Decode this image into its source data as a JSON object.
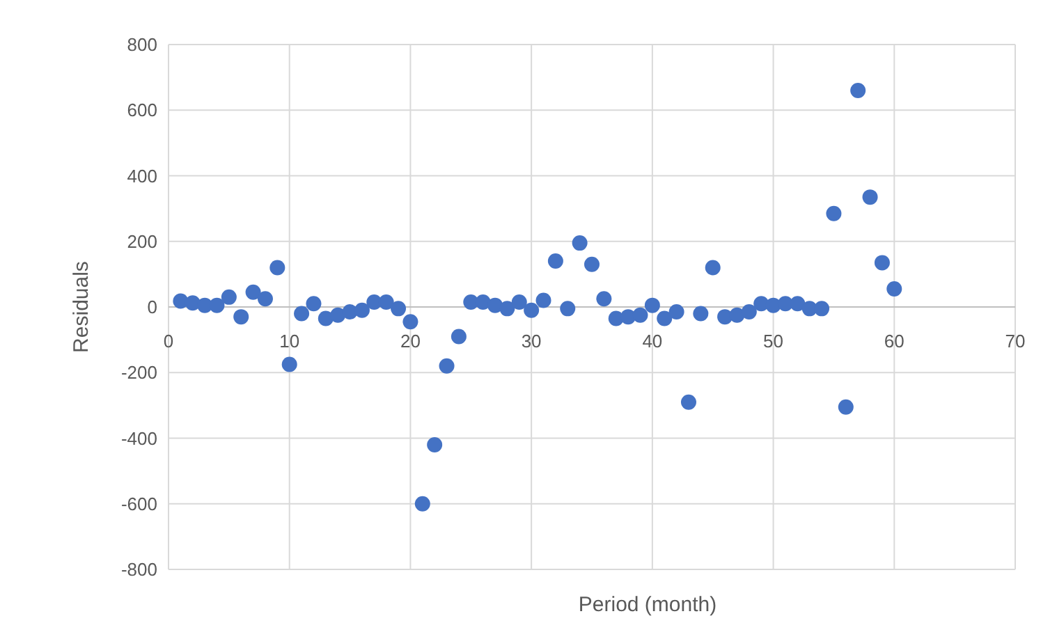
{
  "chart_data": {
    "type": "scatter",
    "xlabel": "Period (month)",
    "ylabel": "Residuals",
    "x": [
      1,
      2,
      3,
      4,
      5,
      6,
      7,
      8,
      9,
      10,
      11,
      12,
      13,
      14,
      15,
      16,
      17,
      18,
      19,
      20,
      21,
      22,
      23,
      24,
      25,
      26,
      27,
      28,
      29,
      30,
      31,
      32,
      33,
      34,
      35,
      36,
      37,
      38,
      39,
      40,
      41,
      42,
      43,
      44,
      45,
      46,
      47,
      48,
      49,
      50,
      51,
      52,
      53,
      54,
      55,
      56,
      57,
      58,
      59,
      60
    ],
    "series": [
      {
        "color": "#4472c4",
        "values": [
          18,
          12,
          5,
          5,
          30,
          -30,
          45,
          25,
          120,
          -175,
          -20,
          10,
          -35,
          -25,
          -15,
          -10,
          15,
          15,
          -5,
          -45,
          -600,
          -420,
          -180,
          -90,
          15,
          15,
          5,
          -5,
          15,
          -10,
          20,
          140,
          -5,
          195,
          130,
          25,
          -35,
          -30,
          -25,
          5,
          -35,
          -15,
          -290,
          -20,
          120,
          -30,
          -25,
          -15,
          10,
          5,
          10,
          10,
          -5,
          -5,
          285,
          -305,
          660,
          335,
          135,
          55
        ]
      }
    ],
    "xlim": [
      0,
      70
    ],
    "xticks": [
      0,
      10,
      20,
      30,
      40,
      50,
      60,
      70
    ],
    "ylim": [
      -800,
      800
    ],
    "yticks": [
      -800,
      -600,
      -400,
      -200,
      0,
      200,
      400,
      600,
      800
    ],
    "grid": true,
    "marker": "circle"
  }
}
